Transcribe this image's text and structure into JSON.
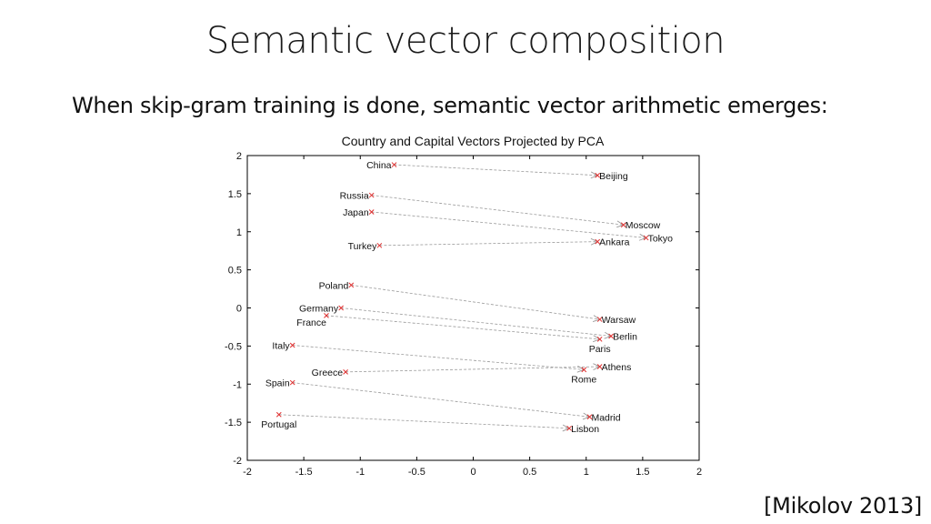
{
  "slide": {
    "title": "Semantic vector composition",
    "subtitle": "When skip-gram training is done, semantic vector arithmetic emerges:",
    "citation": "[Mikolov 2013]"
  },
  "chart_data": {
    "type": "scatter",
    "title": "Country and Capital Vectors Projected by PCA",
    "xlabel": "",
    "ylabel": "",
    "xlim": [
      -2,
      2
    ],
    "ylim": [
      -2,
      2
    ],
    "xticks": [
      "-2",
      "-1.5",
      "-1",
      "-0.5",
      "0",
      "0.5",
      "1",
      "1.5",
      "2"
    ],
    "yticks": [
      "2",
      "1.5",
      "1",
      "0.5",
      "0",
      "-0.5",
      "-1",
      "-1.5",
      "-2"
    ],
    "grid": false,
    "points": [
      {
        "label": "China",
        "x": -0.7,
        "y": 1.88,
        "anchor": "right"
      },
      {
        "label": "Beijing",
        "x": 1.1,
        "y": 1.74,
        "anchor": "left"
      },
      {
        "label": "Russia",
        "x": -0.9,
        "y": 1.48,
        "anchor": "right"
      },
      {
        "label": "Moscow",
        "x": 1.33,
        "y": 1.09,
        "anchor": "left"
      },
      {
        "label": "Japan",
        "x": -0.9,
        "y": 1.26,
        "anchor": "right"
      },
      {
        "label": "Tokyo",
        "x": 1.53,
        "y": 0.92,
        "anchor": "left"
      },
      {
        "label": "Turkey",
        "x": -0.83,
        "y": 0.82,
        "anchor": "right"
      },
      {
        "label": "Ankara",
        "x": 1.1,
        "y": 0.87,
        "anchor": "left"
      },
      {
        "label": "Poland",
        "x": -1.08,
        "y": 0.3,
        "anchor": "right"
      },
      {
        "label": "Warsaw",
        "x": 1.12,
        "y": -0.15,
        "anchor": "left"
      },
      {
        "label": "Germany",
        "x": -1.17,
        "y": 0.0,
        "anchor": "right"
      },
      {
        "label": "Berlin",
        "x": 1.22,
        "y": -0.37,
        "anchor": "left"
      },
      {
        "label": "France",
        "x": -1.3,
        "y": -0.1,
        "anchor": "below-left"
      },
      {
        "label": "Paris",
        "x": 1.12,
        "y": -0.41,
        "anchor": "below"
      },
      {
        "label": "Italy",
        "x": -1.6,
        "y": -0.49,
        "anchor": "right"
      },
      {
        "label": "Athens",
        "x": 1.12,
        "y": -0.77,
        "anchor": "left"
      },
      {
        "label": "Greece",
        "x": -1.13,
        "y": -0.84,
        "anchor": "right"
      },
      {
        "label": "Rome",
        "x": 0.98,
        "y": -0.81,
        "anchor": "below"
      },
      {
        "label": "Spain",
        "x": -1.6,
        "y": -0.98,
        "anchor": "right"
      },
      {
        "label": "Madrid",
        "x": 1.03,
        "y": -1.43,
        "anchor": "left"
      },
      {
        "label": "Portugal",
        "x": -1.72,
        "y": -1.4,
        "anchor": "below"
      },
      {
        "label": "Lisbon",
        "x": 0.85,
        "y": -1.58,
        "anchor": "left"
      }
    ],
    "arrows": [
      {
        "from": "China",
        "to": "Beijing"
      },
      {
        "from": "Russia",
        "to": "Moscow"
      },
      {
        "from": "Japan",
        "to": "Tokyo"
      },
      {
        "from": "Turkey",
        "to": "Ankara"
      },
      {
        "from": "Poland",
        "to": "Warsaw"
      },
      {
        "from": "Germany",
        "to": "Berlin"
      },
      {
        "from": "France",
        "to": "Paris"
      },
      {
        "from": "Italy",
        "to": "Rome"
      },
      {
        "from": "Greece",
        "to": "Athens"
      },
      {
        "from": "Spain",
        "to": "Madrid"
      },
      {
        "from": "Portugal",
        "to": "Lisbon"
      }
    ],
    "colors": {
      "marker": "#e03030",
      "arrow": "#9a9a9a"
    }
  }
}
